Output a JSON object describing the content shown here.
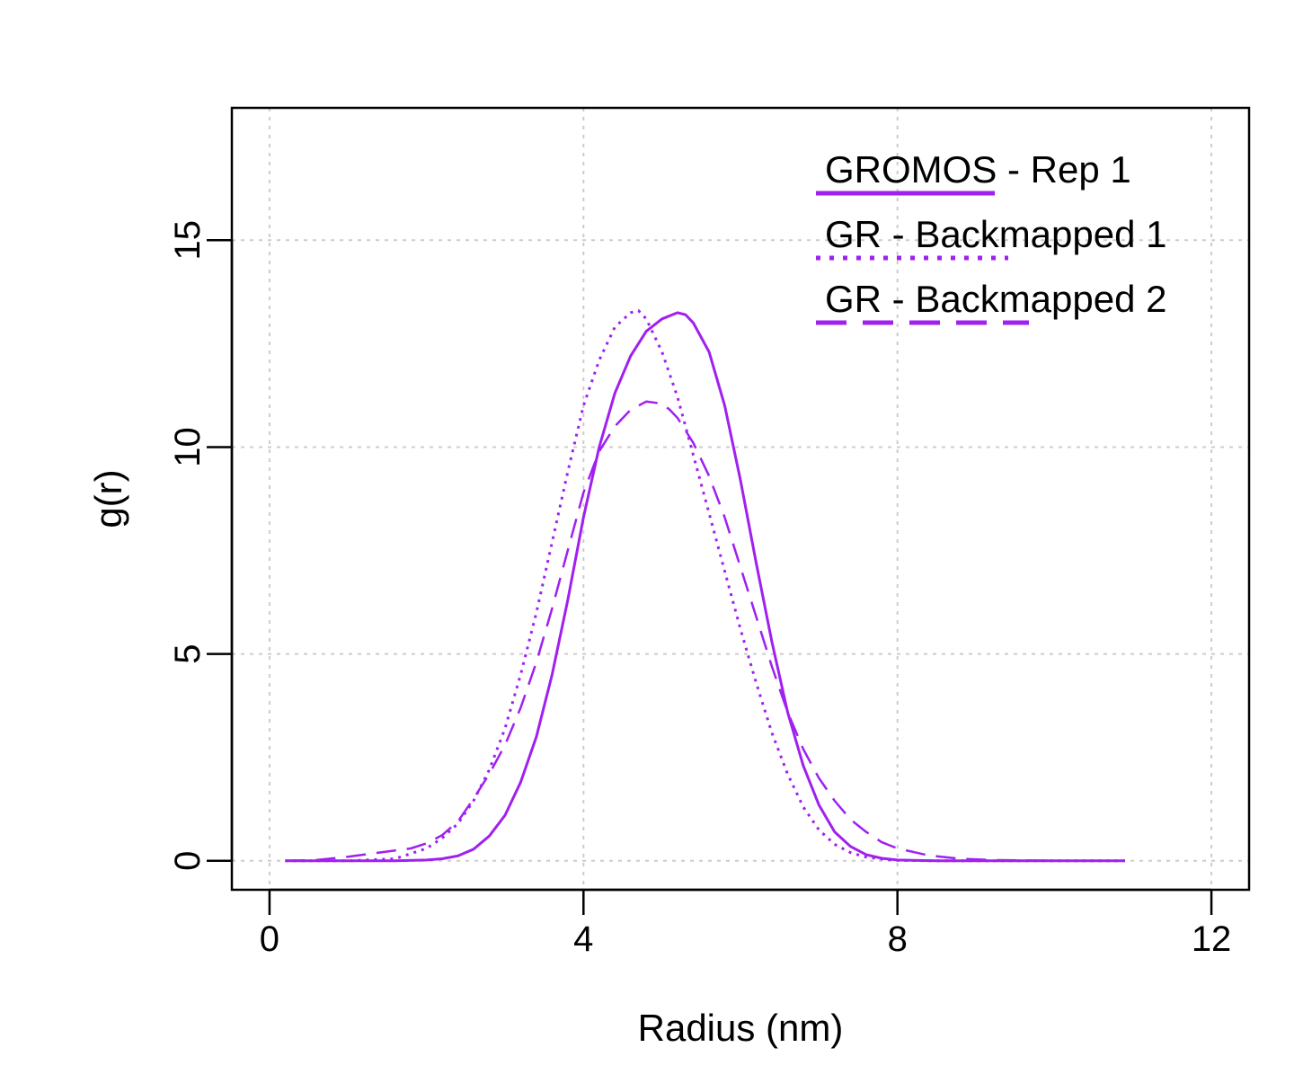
{
  "chart_data": {
    "type": "line",
    "title": "",
    "xlabel": "Radius (nm)",
    "ylabel": "g(r)",
    "xlim": [
      -0.48,
      12.48
    ],
    "ylim": [
      -0.7,
      18.2
    ],
    "xticks": [
      0,
      4,
      8,
      12
    ],
    "yticks": [
      0,
      5,
      10,
      15
    ],
    "xtick_labels": [
      "0",
      "4",
      "8",
      "12"
    ],
    "ytick_labels": [
      "0",
      "5",
      "10",
      "15"
    ],
    "grid": true,
    "legend_position": "top-right",
    "series_color": "#a020f0",
    "series": [
      {
        "name": "GROMOS - Rep 1",
        "line_style": "solid",
        "x": [
          0.2,
          1.0,
          1.6,
          2.0,
          2.2,
          2.4,
          2.6,
          2.8,
          3.0,
          3.2,
          3.4,
          3.6,
          3.8,
          4.0,
          4.2,
          4.4,
          4.6,
          4.8,
          5.0,
          5.2,
          5.3,
          5.4,
          5.6,
          5.8,
          6.0,
          6.2,
          6.4,
          6.6,
          6.8,
          7.0,
          7.2,
          7.4,
          7.6,
          7.8,
          8.0,
          8.5,
          9.0,
          10.0,
          10.9
        ],
        "y": [
          0.0,
          0.0,
          0.0,
          0.02,
          0.05,
          0.12,
          0.28,
          0.6,
          1.1,
          1.9,
          3.0,
          4.5,
          6.3,
          8.3,
          10.0,
          11.3,
          12.2,
          12.8,
          13.1,
          13.25,
          13.2,
          13.0,
          12.3,
          11.0,
          9.2,
          7.2,
          5.3,
          3.6,
          2.3,
          1.35,
          0.7,
          0.35,
          0.15,
          0.06,
          0.02,
          0.0,
          0.0,
          0.0,
          0.0
        ]
      },
      {
        "name": "GR - Backmapped 1",
        "line_style": "dotted",
        "x": [
          0.2,
          1.0,
          1.6,
          2.0,
          2.2,
          2.4,
          2.6,
          2.8,
          3.0,
          3.2,
          3.4,
          3.6,
          3.8,
          4.0,
          4.2,
          4.4,
          4.6,
          4.7,
          4.8,
          5.0,
          5.2,
          5.4,
          5.6,
          5.8,
          6.0,
          6.2,
          6.4,
          6.6,
          6.8,
          7.0,
          7.2,
          7.4,
          7.6,
          7.8,
          8.0,
          8.5,
          9.0,
          10.0,
          10.9
        ],
        "y": [
          0.0,
          0.0,
          0.05,
          0.3,
          0.55,
          0.9,
          1.45,
          2.2,
          3.2,
          4.5,
          6.0,
          7.7,
          9.4,
          11.0,
          12.1,
          12.9,
          13.25,
          13.3,
          13.1,
          12.3,
          11.2,
          9.8,
          8.4,
          7.0,
          5.6,
          4.3,
          3.1,
          2.1,
          1.3,
          0.75,
          0.4,
          0.2,
          0.09,
          0.04,
          0.01,
          0.0,
          0.0,
          0.0,
          0.0
        ]
      },
      {
        "name": "GR - Backmapped 2",
        "line_style": "dashed",
        "x": [
          0.2,
          0.6,
          1.0,
          1.4,
          1.8,
          2.0,
          2.2,
          2.4,
          2.6,
          2.8,
          3.0,
          3.2,
          3.4,
          3.6,
          3.8,
          4.0,
          4.2,
          4.4,
          4.6,
          4.8,
          5.0,
          5.1,
          5.2,
          5.4,
          5.6,
          5.8,
          6.0,
          6.2,
          6.4,
          6.6,
          6.8,
          7.0,
          7.2,
          7.4,
          7.6,
          7.8,
          8.0,
          8.4,
          8.8,
          9.2,
          9.6,
          10.0,
          10.9
        ],
        "y": [
          0.0,
          0.02,
          0.1,
          0.2,
          0.3,
          0.42,
          0.62,
          0.95,
          1.5,
          2.1,
          2.8,
          3.7,
          4.8,
          6.1,
          7.5,
          8.9,
          9.9,
          10.5,
          10.9,
          11.1,
          11.05,
          10.9,
          10.7,
          10.1,
          9.3,
          8.3,
          7.1,
          5.9,
          4.7,
          3.6,
          2.7,
          2.0,
          1.45,
          1.0,
          0.7,
          0.45,
          0.3,
          0.13,
          0.05,
          0.02,
          0.01,
          0.0,
          0.0
        ]
      }
    ]
  }
}
